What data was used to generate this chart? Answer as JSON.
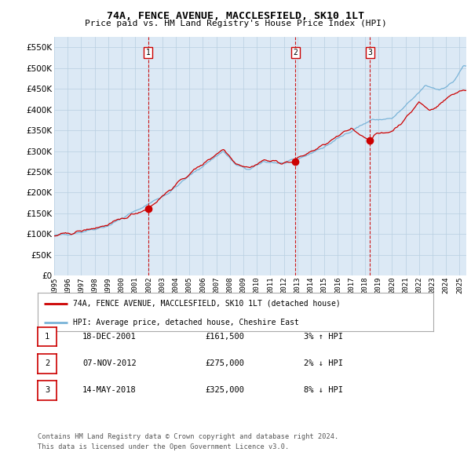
{
  "title": "74A, FENCE AVENUE, MACCLESFIELD, SK10 1LT",
  "subtitle": "Price paid vs. HM Land Registry's House Price Index (HPI)",
  "bg_color": "#dce9f5",
  "hpi_color": "#7ab4d8",
  "price_color": "#cc0000",
  "marker_color": "#cc0000",
  "vline_color": "#cc0000",
  "ylim": [
    0,
    575000
  ],
  "yticks": [
    0,
    50000,
    100000,
    150000,
    200000,
    250000,
    300000,
    350000,
    400000,
    450000,
    500000,
    550000
  ],
  "transactions": [
    {
      "date_num": 2001.96,
      "price": 161500,
      "label": "1"
    },
    {
      "date_num": 2012.85,
      "price": 275000,
      "label": "2"
    },
    {
      "date_num": 2018.37,
      "price": 325000,
      "label": "3"
    }
  ],
  "legend_entries": [
    {
      "label": "74A, FENCE AVENUE, MACCLESFIELD, SK10 1LT (detached house)",
      "color": "#cc0000"
    },
    {
      "label": "HPI: Average price, detached house, Cheshire East",
      "color": "#7ab4d8"
    }
  ],
  "table_rows": [
    {
      "num": "1",
      "date": "18-DEC-2001",
      "price": "£161,500",
      "hpi": "3% ↑ HPI"
    },
    {
      "num": "2",
      "date": "07-NOV-2012",
      "price": "£275,000",
      "hpi": "2% ↓ HPI"
    },
    {
      "num": "3",
      "date": "14-MAY-2018",
      "price": "£325,000",
      "hpi": "8% ↓ HPI"
    }
  ],
  "footnote1": "Contains HM Land Registry data © Crown copyright and database right 2024.",
  "footnote2": "This data is licensed under the Open Government Licence v3.0.",
  "xstart": 1995.0,
  "xend": 2025.5,
  "seed": 42
}
